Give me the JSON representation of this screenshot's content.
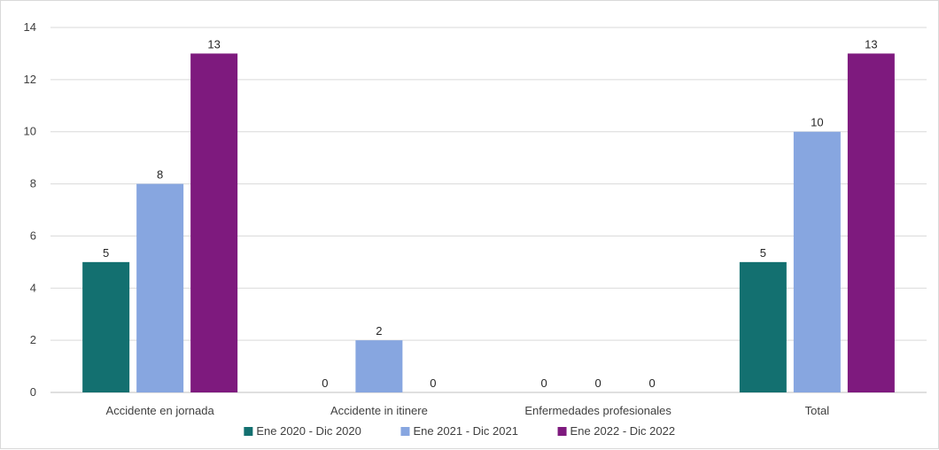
{
  "chart_data": {
    "type": "bar",
    "title": "",
    "xlabel": "",
    "ylabel": "",
    "ylim": [
      0,
      14
    ],
    "yticks": [
      0,
      2,
      4,
      6,
      8,
      10,
      12,
      14
    ],
    "grid": true,
    "legend_position": "bottom",
    "categories": [
      "Accidente en jornada",
      "Accidente in itinere",
      "Enfermedades profesionales",
      "Total"
    ],
    "series": [
      {
        "name": "Ene 2020 - Dic 2020",
        "color": "#137070",
        "values": [
          5,
          0,
          0,
          5
        ]
      },
      {
        "name": "Ene 2021 - Dic 2021",
        "color": "#87a6e0",
        "values": [
          8,
          2,
          0,
          10
        ]
      },
      {
        "name": "Ene 2022 - Dic 2022",
        "color": "#7e1a7e",
        "values": [
          13,
          0,
          0,
          13
        ]
      }
    ]
  }
}
